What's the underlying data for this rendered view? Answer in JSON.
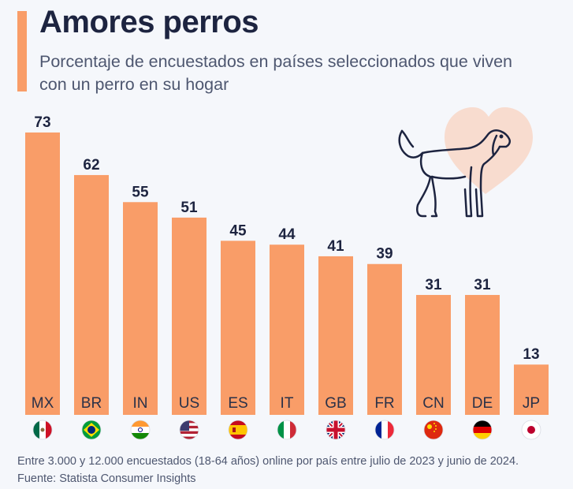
{
  "header": {
    "title": "Amores perros",
    "subtitle": "Porcentaje de encuestados en países seleccionados que viven con un perro en su hogar"
  },
  "chart_data": {
    "type": "bar",
    "title": "Amores perros",
    "subtitle": "Porcentaje de encuestados en países seleccionados que viven con un perro en su hogar",
    "categories": [
      "MX",
      "BR",
      "IN",
      "US",
      "ES",
      "IT",
      "GB",
      "FR",
      "CN",
      "DE",
      "JP"
    ],
    "values": [
      73,
      62,
      55,
      51,
      45,
      44,
      41,
      39,
      31,
      31,
      13
    ],
    "xlabel": "",
    "ylabel": "",
    "ylim": [
      0,
      73
    ],
    "grid": false,
    "bar_color": "#f99d68",
    "flags": [
      "mexico-flag-icon",
      "brazil-flag-icon",
      "india-flag-icon",
      "usa-flag-icon",
      "spain-flag-icon",
      "italy-flag-icon",
      "uk-flag-icon",
      "france-flag-icon",
      "china-flag-icon",
      "germany-flag-icon",
      "japan-flag-icon"
    ]
  },
  "footer": {
    "note": "Entre 3.000 y 12.000 encuestados (18-64 años) online por país entre julio de 2023 y junio de 2024.",
    "source": "Fuente: Statista Consumer Insights"
  },
  "colors": {
    "accent": "#f99d68",
    "title": "#1d2440",
    "heart": "#f8dccf"
  },
  "icons": {
    "dog": "dog-icon",
    "heart": "heart-icon"
  }
}
